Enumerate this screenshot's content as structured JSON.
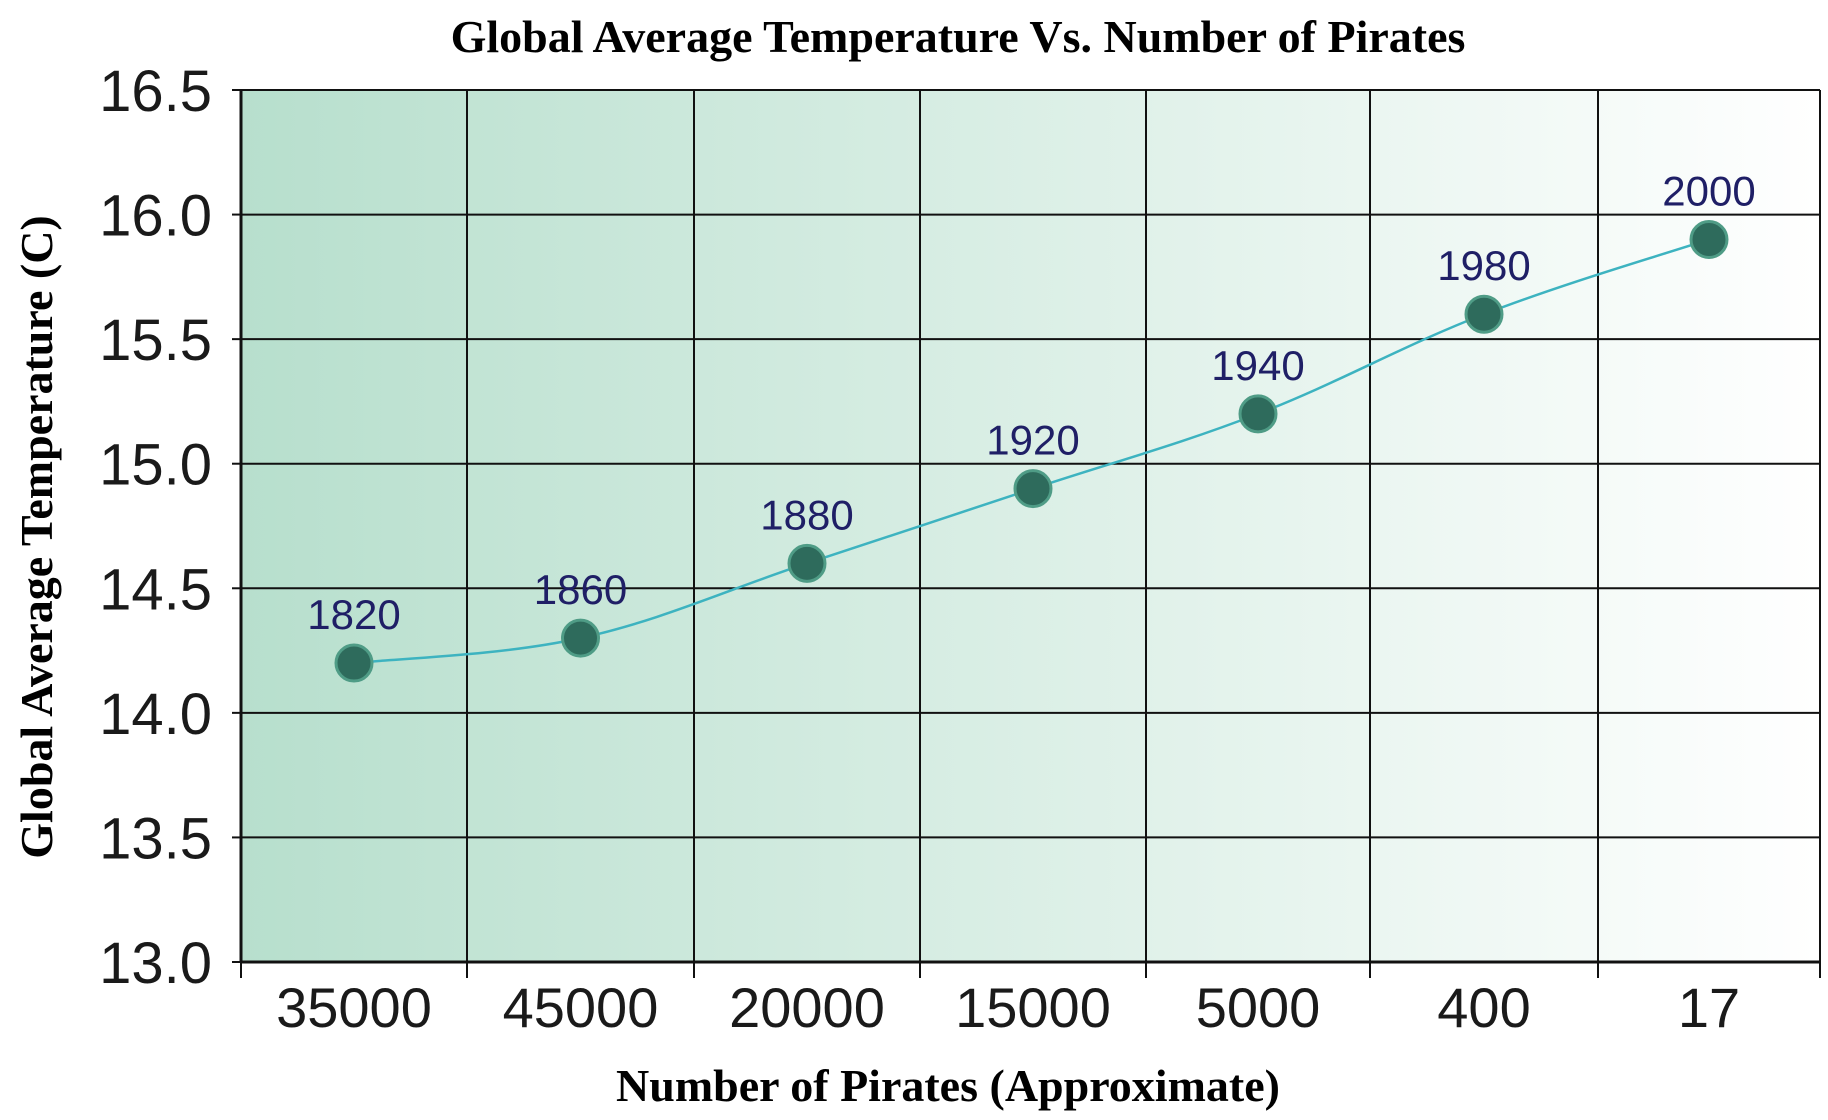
{
  "chart_data": {
    "type": "line",
    "title": "Global Average Temperature Vs. Number of Pirates",
    "xlabel": "Number of Pirates (Approximate)",
    "ylabel": "Global Average Temperature (C)",
    "categories": [
      "35000",
      "45000",
      "20000",
      "15000",
      "5000",
      "400",
      "17"
    ],
    "series": [
      {
        "values": [
          14.2,
          14.3,
          14.6,
          14.9,
          15.2,
          15.6,
          15.9
        ],
        "point_labels": [
          "1820",
          "1860",
          "1880",
          "1920",
          "1940",
          "1980",
          "2000"
        ]
      }
    ],
    "ylim": [
      13.0,
      16.5
    ],
    "yticks": [
      "13.0",
      "13.5",
      "14.0",
      "14.5",
      "15.0",
      "15.5",
      "16.0",
      "16.5"
    ],
    "grid": true,
    "colors": {
      "line": "#3db3c0",
      "marker_fill": "#2e6b5c",
      "marker_stroke": "#4f9c86",
      "point_label": "#1f1f66",
      "background_left": "#b7dfcd",
      "background_right": "#ffffff",
      "grid": "#111111"
    }
  }
}
